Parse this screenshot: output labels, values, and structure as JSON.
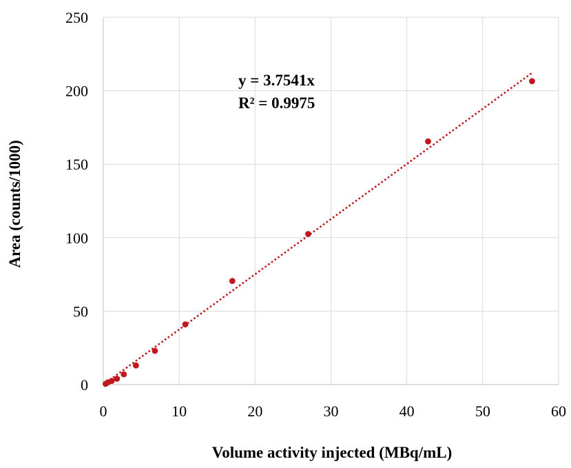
{
  "chart_data": {
    "type": "scatter",
    "title": "",
    "xlabel": "Volume activity injected (MBq/mL)",
    "ylabel": "Area (counts/1000)",
    "xlim": [
      0,
      60
    ],
    "ylim": [
      0,
      250
    ],
    "x_ticks": [
      0,
      10,
      20,
      30,
      40,
      50,
      60
    ],
    "y_ticks": [
      0,
      50,
      100,
      150,
      200,
      250
    ],
    "x_tick_labels": [
      "0",
      "10",
      "20",
      "30",
      "40",
      "50",
      "60"
    ],
    "y_tick_labels": [
      "0",
      "50",
      "100",
      "150",
      "200",
      "250"
    ],
    "grid": true,
    "legend": "none",
    "series": [
      {
        "x": [
          0.3,
          0.6,
          1.1,
          1.8,
          2.7,
          4.3,
          6.8,
          10.8,
          17.0,
          27.0,
          42.8,
          56.5
        ],
        "y": [
          0.5,
          1.5,
          2.5,
          4.0,
          7.0,
          13.0,
          23.0,
          41.0,
          70.5,
          102.5,
          165.5,
          206.5
        ],
        "marker_color": "#c0181e"
      }
    ],
    "trendline": {
      "type": "linear",
      "slope": 3.7541,
      "intercept": 0,
      "x_range": [
        0,
        56.5
      ],
      "style": "dotted",
      "color": "#c0181e",
      "equation": "y = 3.7541x",
      "r_squared": "R² = 0.9975"
    },
    "colors": {
      "grid": "#d9d9d9",
      "axis": "#bfbfbf",
      "text": "#000000"
    }
  }
}
